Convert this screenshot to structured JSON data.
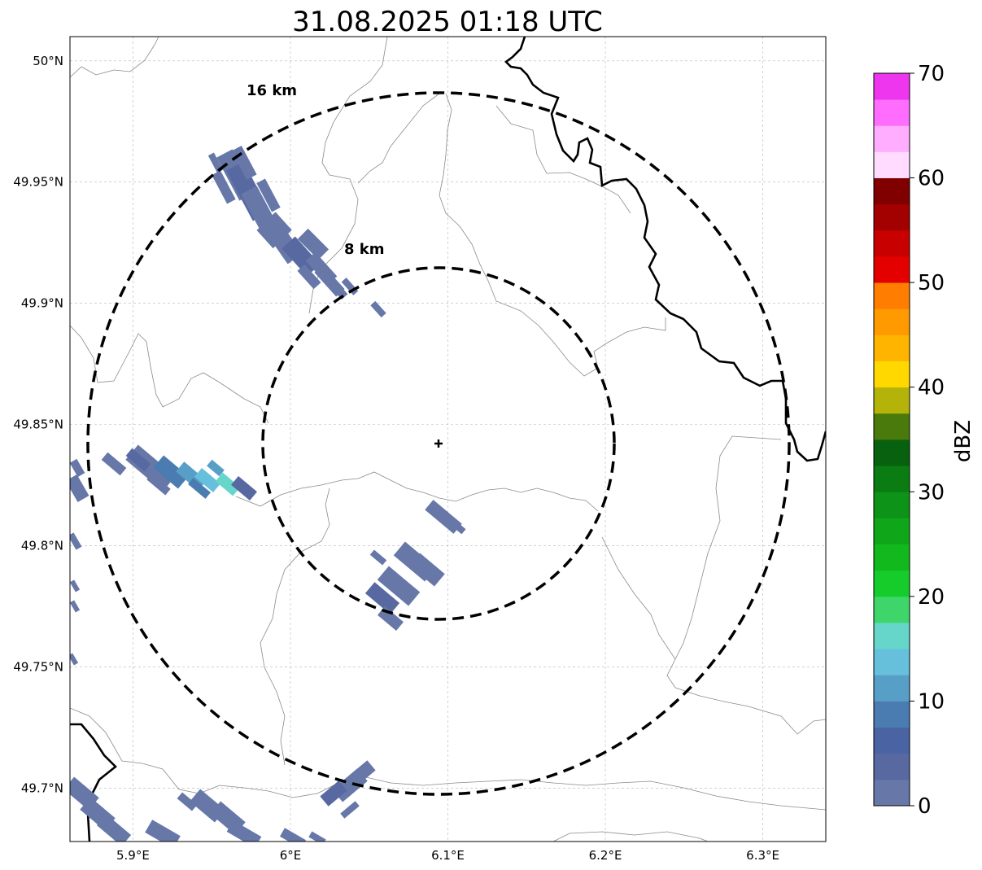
{
  "title": "31.08.2025 01:18 UTC",
  "map": {
    "lon_range": [
      5.86,
      6.34
    ],
    "lat_range": [
      49.678,
      50.01
    ],
    "lon_ticks": [
      {
        "value": 5.9,
        "label": "5.9°E"
      },
      {
        "value": 6.0,
        "label": "6°E"
      },
      {
        "value": 6.1,
        "label": "6.1°E"
      },
      {
        "value": 6.2,
        "label": "6.2°E"
      },
      {
        "value": 6.3,
        "label": "6.3°E"
      }
    ],
    "lat_ticks": [
      {
        "value": 50.0,
        "label": "50°N"
      },
      {
        "value": 49.95,
        "label": "49.95°N"
      },
      {
        "value": 49.9,
        "label": "49.9°N"
      },
      {
        "value": 49.85,
        "label": "49.85°N"
      },
      {
        "value": 49.8,
        "label": "49.8°N"
      },
      {
        "value": 49.75,
        "label": "49.75°N"
      },
      {
        "value": 49.7,
        "label": "49.7°N"
      }
    ],
    "radar_site": {
      "lon": 6.095,
      "lat": 49.843
    },
    "range_rings": [
      {
        "radius_km": 8,
        "label": "8 km"
      },
      {
        "radius_km": 16,
        "label": "16 km"
      }
    ],
    "gridlines": true
  },
  "colorbar": {
    "label": "dBZ",
    "min": 0,
    "max": 70,
    "step": 2.5,
    "tick_labels": [
      "0",
      "10",
      "20",
      "30",
      "40",
      "50",
      "60",
      "70"
    ],
    "colors": [
      "#6677a8",
      "#5769a0",
      "#4963a3",
      "#4a7cb2",
      "#589fc7",
      "#66c0dc",
      "#66d6cb",
      "#3ed66b",
      "#15cc2a",
      "#11b91d",
      "#10a61a",
      "#0d9317",
      "#0a7c12",
      "#07610e",
      "#4a7a0b",
      "#b3b30a",
      "#ffd800",
      "#ffb500",
      "#ff9a00",
      "#ff7d00",
      "#e50000",
      "#c80000",
      "#a30000",
      "#800000",
      "#ffdcff",
      "#ffadff",
      "#ff6dff",
      "#ef36ef"
    ]
  }
}
